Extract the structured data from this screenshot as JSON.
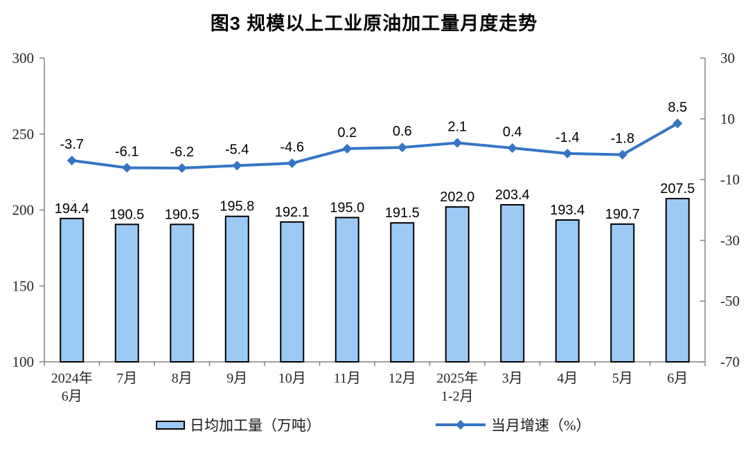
{
  "title": "图3  规模以上工业原油加工量月度走势",
  "colors": {
    "bar_fill": "#9DC9F5",
    "bar_border": "#000000",
    "line": "#3574C5",
    "axis": "#848484",
    "label_text": "#000000",
    "tick_text": "#262626"
  },
  "chart_data": {
    "type": "bar+line combo",
    "title": "图3  规模以上工业原油加工量月度走势",
    "categories": [
      "2024年6月",
      "7月",
      "8月",
      "9月",
      "10月",
      "11月",
      "12月",
      "2025年1-2月",
      "3月",
      "4月",
      "5月",
      "6月"
    ],
    "category_labels": [
      [
        "2024年",
        "6月"
      ],
      [
        "7月"
      ],
      [
        "8月"
      ],
      [
        "9月"
      ],
      [
        "10月"
      ],
      [
        "11月"
      ],
      [
        "12月"
      ],
      [
        "2025年",
        "1-2月"
      ],
      [
        "3月"
      ],
      [
        "4月"
      ],
      [
        "5月"
      ],
      [
        "6月"
      ]
    ],
    "series": [
      {
        "name": "日均加工量（万吨）",
        "type": "bar",
        "axis": "left",
        "values": [
          194.4,
          190.5,
          190.5,
          195.8,
          192.1,
          195.0,
          191.5,
          202.0,
          203.4,
          193.4,
          190.7,
          207.5
        ]
      },
      {
        "name": "当月增速（%）",
        "type": "line",
        "axis": "right",
        "values": [
          -3.7,
          -6.1,
          -6.2,
          -5.4,
          -4.6,
          0.2,
          0.6,
          2.1,
          0.4,
          -1.4,
          -1.8,
          8.5
        ]
      }
    ],
    "left_axis": {
      "min": 100,
      "max": 300,
      "ticks": [
        300,
        250,
        200,
        150,
        100
      ]
    },
    "right_axis": {
      "min": -70,
      "max": 30,
      "ticks": [
        30,
        10,
        -10,
        -30,
        -50,
        -70
      ]
    },
    "grid": false,
    "legend_position": "bottom"
  }
}
